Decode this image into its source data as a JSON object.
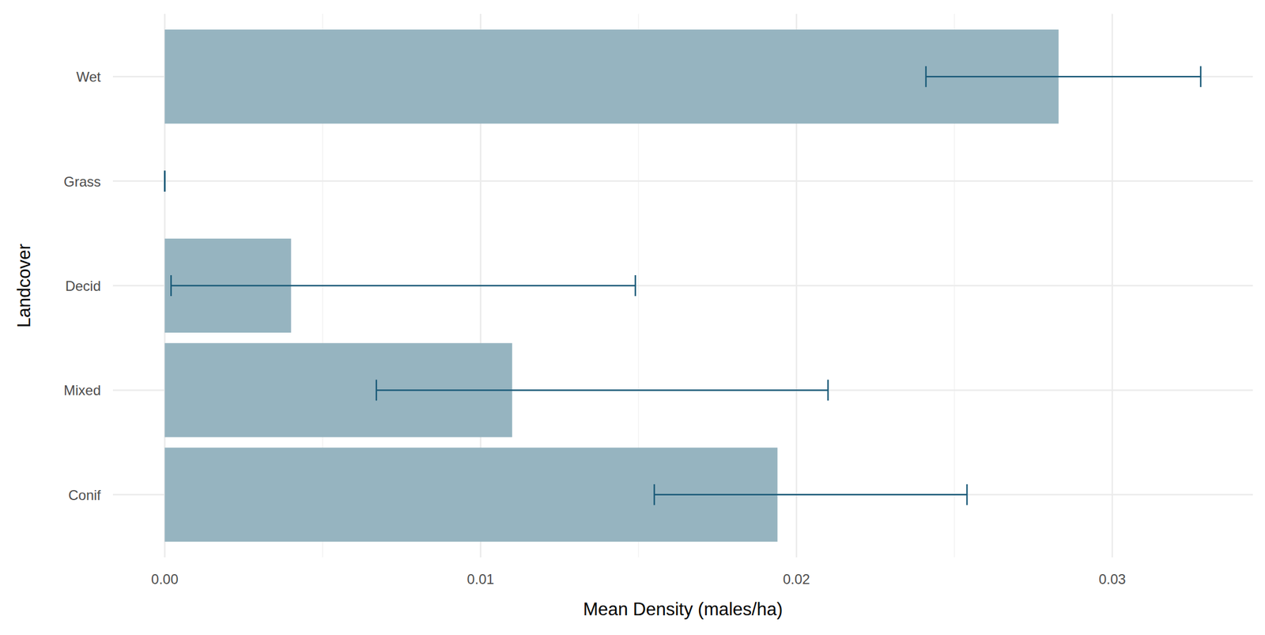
{
  "chart_data": {
    "type": "bar",
    "orientation": "horizontal",
    "x_label": "Mean Density (males/ha)",
    "y_label": "Landcover",
    "categories": [
      "Wet",
      "Grass",
      "Decid",
      "Mixed",
      "Conif"
    ],
    "values": [
      0.0283,
      0,
      0.004,
      0.011,
      0.0194
    ],
    "error_low": [
      0.0241,
      0,
      0.0002,
      0.0067,
      0.0155
    ],
    "error_high": [
      0.0328,
      0,
      0.0149,
      0.021,
      0.0254
    ],
    "color": "#96b4c0",
    "xlim": [
      -0.00164,
      0.03445
    ],
    "xticks": [
      {
        "value": 0,
        "label": "0.00"
      },
      0.01,
      0.02,
      0.03
    ],
    "grid": true
  }
}
